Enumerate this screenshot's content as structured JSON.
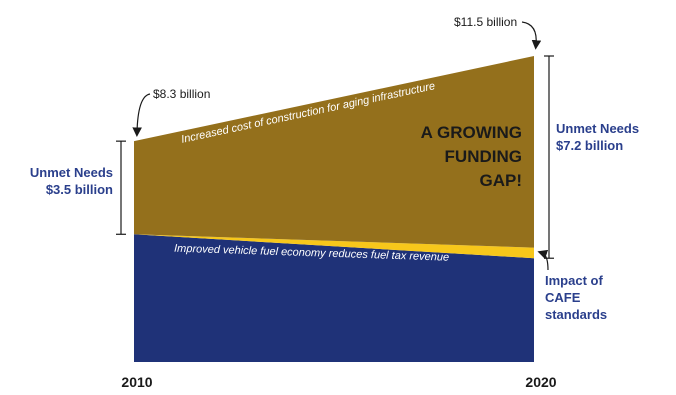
{
  "chart_data": {
    "type": "area",
    "x": [
      2010,
      2020
    ],
    "x_tick_labels": [
      "2010",
      "2020"
    ],
    "y_unit": "billion $",
    "ylim": [
      0,
      11.5
    ],
    "series": [
      {
        "key": "revenue",
        "values": [
          4.8,
          3.9
        ],
        "color": "#1f3278"
      },
      {
        "key": "cafe",
        "values": [
          0.0,
          0.4
        ],
        "color": "#f7c71b"
      },
      {
        "key": "unmet",
        "values": [
          3.5,
          7.2
        ],
        "color": "#94701c"
      }
    ],
    "totals": [
      8.3,
      11.5
    ],
    "annotations": {
      "total_2010": "$8.3 billion",
      "total_2020": "$11.5 billion",
      "unmet_2010_line1": "Unmet Needs",
      "unmet_2010_line2": "$3.5 billion",
      "unmet_2020_line1": "Unmet Needs",
      "unmet_2020_line2": "$7.2 billion",
      "cafe_line1": "Impact of",
      "cafe_line2": "CAFE",
      "cafe_line3": "standards",
      "gap_line1": "A GROWING",
      "gap_line2": "FUNDING",
      "gap_line3": "GAP!",
      "top_edge_text": "Increased cost of construction for aging infrastructure",
      "bottom_edge_text": "Improved vehicle fuel economy reduces fuel tax revenue"
    }
  }
}
